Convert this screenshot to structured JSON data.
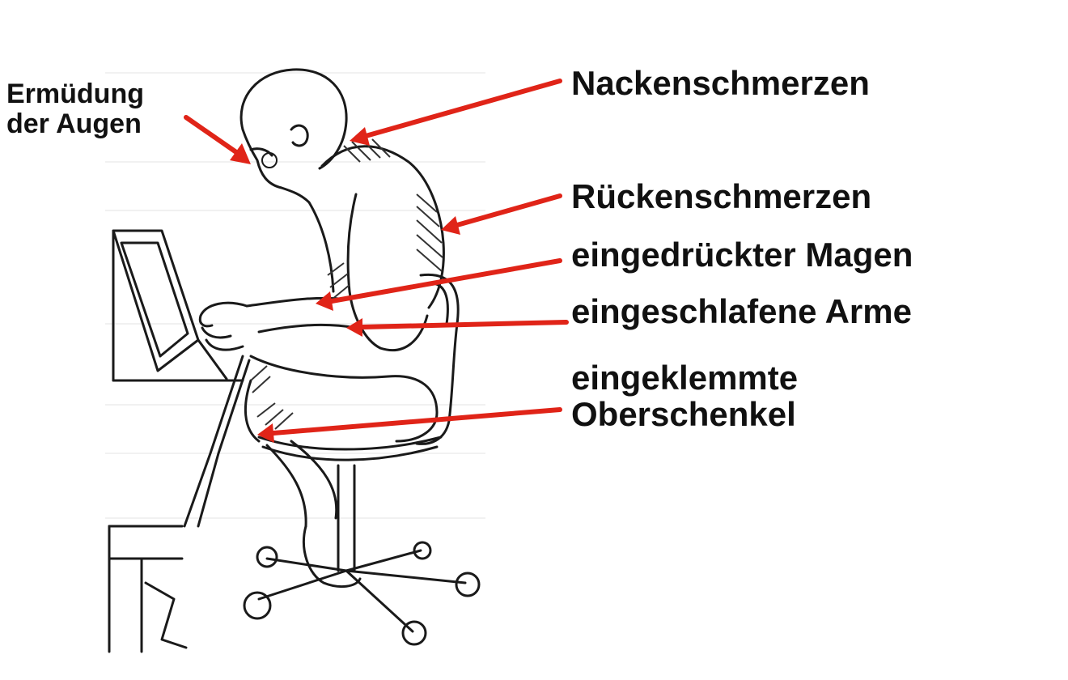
{
  "labels": {
    "eyes": [
      "Ermüdung",
      "der Augen"
    ],
    "neck": "Nackenschmerzen",
    "back": "Rückenschmerzen",
    "stomach": "eingedrückter Magen",
    "arms": "eingeschlafene Arme",
    "thigh": [
      "eingeklemmte",
      "Oberschenkel"
    ]
  },
  "colors": {
    "arrow": "#e02418",
    "text": "#111111",
    "line_art": "#1a1a1a",
    "background": "#ffffff"
  }
}
